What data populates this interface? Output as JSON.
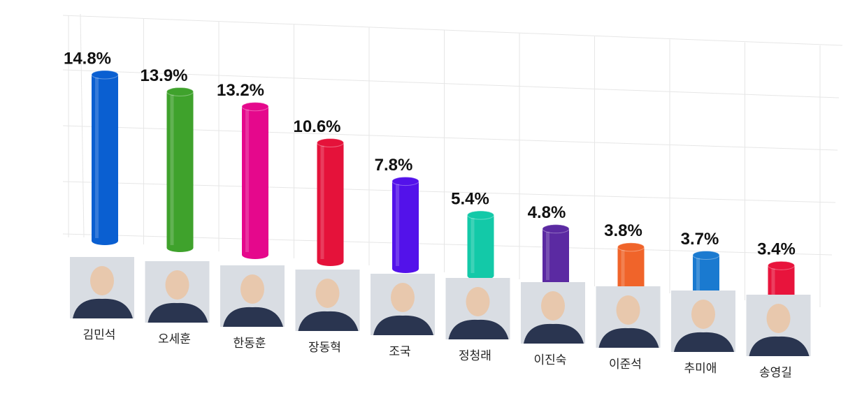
{
  "chart_data": {
    "type": "bar",
    "categories": [
      "김민석",
      "오세훈",
      "한동훈",
      "장동혁",
      "조국",
      "정청래",
      "이진숙",
      "이준석",
      "추미애",
      "송영길"
    ],
    "values": [
      14.8,
      13.9,
      13.2,
      10.6,
      7.8,
      5.4,
      4.8,
      3.8,
      3.7,
      3.4
    ],
    "value_labels": [
      "14.8%",
      "13.9%",
      "13.2%",
      "10.6%",
      "7.8%",
      "5.4%",
      "4.8%",
      "3.8%",
      "3.7%",
      "3.4%"
    ],
    "colors": [
      "#0a5fd1",
      "#3fa22c",
      "#e5088c",
      "#e5123a",
      "#5312ea",
      "#13c9a8",
      "#5b2aa2",
      "#f0642a",
      "#1a7ad0",
      "#e8143c"
    ]
  }
}
